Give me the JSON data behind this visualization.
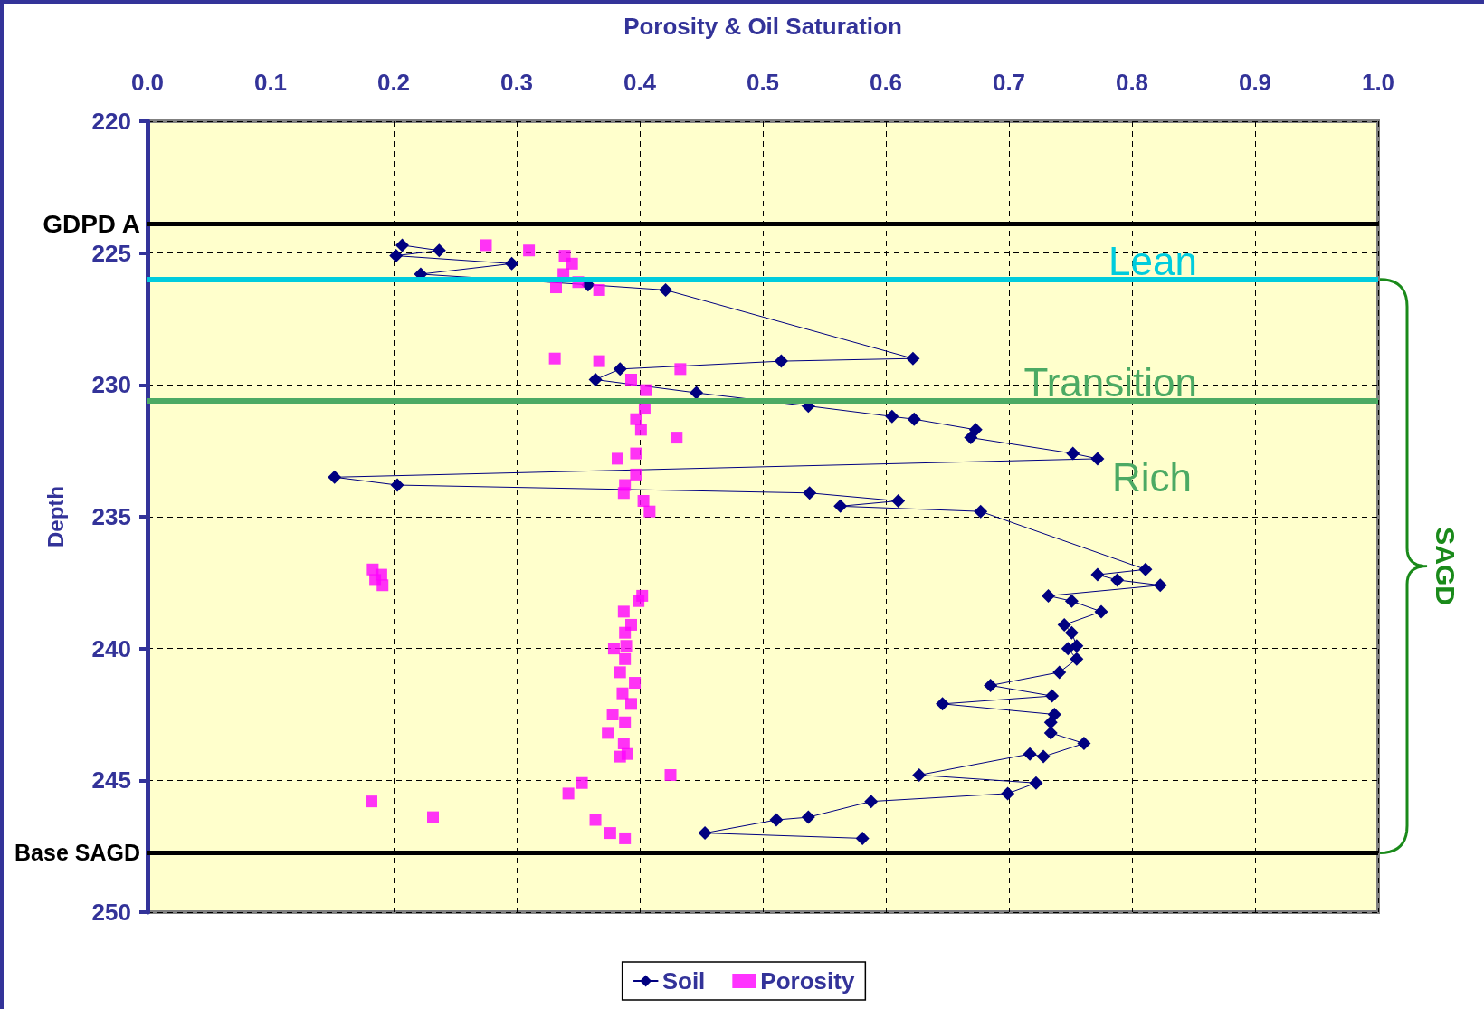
{
  "chart_data": {
    "type": "scatter",
    "xlabel": "Porosity & Oil Saturation",
    "ylabel": "Depth",
    "xlim": [
      0,
      1
    ],
    "xticks": [
      {
        "value": 0,
        "label": "0.0"
      },
      0.1,
      0.2,
      0.3,
      0.4,
      0.5,
      0.6,
      0.7,
      0.8,
      0.9,
      {
        "value": 1,
        "label": "1.0"
      }
    ],
    "ylim": [
      250,
      220
    ],
    "yticks": [
      220,
      225,
      230,
      235,
      240,
      245,
      250
    ],
    "grid": true,
    "legend": "bottom",
    "series": [
      {
        "name": "Soil",
        "type": "line",
        "marker": "diamond",
        "line_style": "solid",
        "color": "#000080",
        "x": [
          0.207,
          0.237,
          0.202,
          0.296,
          0.222,
          0.358,
          0.421,
          0.622,
          0.515,
          0.384,
          0.364,
          0.446,
          0.537,
          0.605,
          0.623,
          0.673,
          0.669,
          0.752,
          0.772,
          0.152,
          0.203,
          0.538,
          0.61,
          0.563,
          0.677,
          0.811,
          0.772,
          0.788,
          0.823,
          0.732,
          0.751,
          0.775,
          0.745,
          0.751,
          0.755,
          0.748,
          0.755,
          0.741,
          0.685,
          0.735,
          0.646,
          0.737,
          0.734,
          0.734,
          0.761,
          0.728,
          0.717,
          0.627,
          0.722,
          0.699,
          0.588,
          0.537,
          0.511,
          0.453,
          0.581
        ],
        "values": [
          224.7,
          224.9,
          225.1,
          225.4,
          225.8,
          226.2,
          226.4,
          229.0,
          229.1,
          229.4,
          229.8,
          230.3,
          230.8,
          231.2,
          231.3,
          231.7,
          232.0,
          232.6,
          232.8,
          233.5,
          233.8,
          234.1,
          234.4,
          234.6,
          234.8,
          237.0,
          237.2,
          237.4,
          237.6,
          238.0,
          238.2,
          238.6,
          239.1,
          239.4,
          239.9,
          240.0,
          240.4,
          240.9,
          241.4,
          241.8,
          242.1,
          242.5,
          242.8,
          243.2,
          243.6,
          244.1,
          244.0,
          244.8,
          245.1,
          245.5,
          245.8,
          246.4,
          246.5,
          247.0,
          247.2
        ]
      },
      {
        "name": "Porosity",
        "type": "scatter",
        "marker": "square",
        "color": "#ff00ff",
        "x": [
          0.275,
          0.31,
          0.339,
          0.345,
          0.338,
          0.35,
          0.332,
          0.367,
          0.331,
          0.367,
          0.433,
          0.393,
          0.405,
          0.404,
          0.397,
          0.401,
          0.43,
          0.397,
          0.382,
          0.397,
          0.388,
          0.387,
          0.403,
          0.408,
          0.183,
          0.19,
          0.185,
          0.191,
          0.402,
          0.399,
          0.387,
          0.393,
          0.388,
          0.379,
          0.389,
          0.388,
          0.384,
          0.396,
          0.386,
          0.393,
          0.378,
          0.388,
          0.374,
          0.387,
          0.39,
          0.384,
          0.425,
          0.353,
          0.342,
          0.182,
          0.232,
          0.364,
          0.376,
          0.388
        ],
        "values": [
          224.7,
          224.9,
          225.1,
          225.4,
          225.8,
          226.1,
          226.3,
          226.4,
          229.0,
          229.1,
          229.4,
          229.8,
          230.2,
          230.9,
          231.3,
          231.7,
          232.0,
          232.6,
          232.8,
          233.4,
          233.8,
          234.1,
          234.4,
          234.8,
          237.0,
          237.2,
          237.4,
          237.6,
          238.0,
          238.2,
          238.6,
          239.1,
          239.4,
          240.0,
          239.9,
          240.4,
          240.9,
          241.3,
          241.7,
          242.1,
          242.5,
          242.8,
          243.2,
          243.6,
          244.0,
          244.1,
          244.8,
          245.1,
          245.5,
          245.8,
          246.4,
          246.5,
          247.0,
          247.2
        ]
      }
    ],
    "ref_lines": [
      {
        "axis": "y",
        "value": 223.9,
        "label": "GDPD A",
        "color": "#000000"
      },
      {
        "axis": "y",
        "value": 226,
        "label": "Lean",
        "color": "#00ccdd"
      },
      {
        "axis": "y",
        "value": 230.6,
        "label": "Transition",
        "color": "#4caa64"
      },
      {
        "axis": "y",
        "value": 247.75,
        "label": "Base SAGD",
        "color": "#000000"
      }
    ],
    "annotations": [
      "Rich",
      "SAGD"
    ]
  }
}
